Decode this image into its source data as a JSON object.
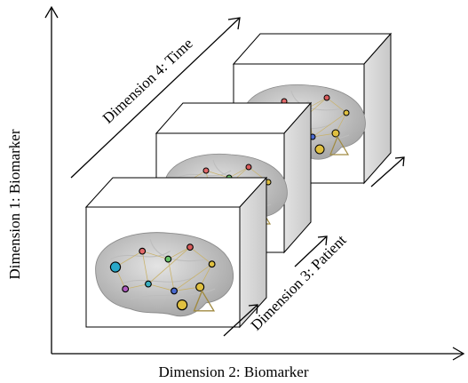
{
  "axes": {
    "y_label": "Dimension 1: Biomarker",
    "x_label": "Dimension 2: Biomarker",
    "time_label": "Dimension 4: Time",
    "patient_label": "Dimension 3: Patient"
  }
}
